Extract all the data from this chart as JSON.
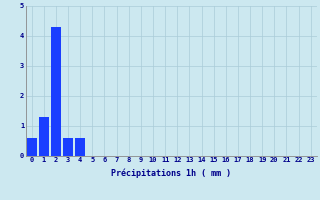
{
  "values": [
    0.6,
    1.3,
    4.3,
    0.6,
    0.6,
    0,
    0,
    0,
    0,
    0,
    0,
    0,
    0,
    0,
    0,
    0,
    0,
    0,
    0,
    0,
    0,
    0,
    0,
    0
  ],
  "bar_color": "#1a3fff",
  "bg_color": "#cce8f0",
  "grid_color": "#aaccd8",
  "xlabel": "Précipitations 1h ( mm )",
  "xlabel_color": "#00008b",
  "xlabel_fontsize": 6.0,
  "tick_color": "#00008b",
  "tick_fontsize": 5.0,
  "ylim": [
    0,
    5
  ],
  "yticks": [
    0,
    1,
    2,
    3,
    4,
    5
  ],
  "n_bars": 24,
  "figsize": [
    3.2,
    2.0
  ],
  "dpi": 100
}
